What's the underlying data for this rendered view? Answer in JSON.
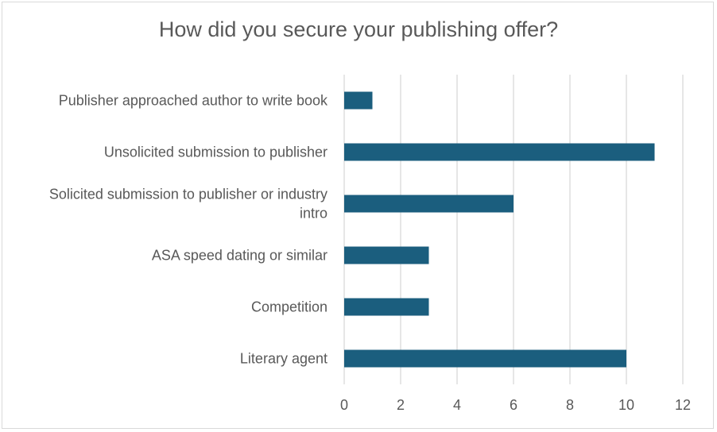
{
  "chart_data": {
    "type": "bar",
    "orientation": "horizontal",
    "title": "How did you secure your publishing offer?",
    "categories": [
      "Publisher approached author to write book",
      "Unsolicited submission to publisher",
      "Solicited submission to publisher or industry intro",
      "ASA speed dating or similar",
      "Competition",
      "Literary agent"
    ],
    "category_lines": [
      [
        "Publisher approached author to write book"
      ],
      [
        "Unsolicited submission to publisher"
      ],
      [
        "Solicited submission to publisher or industry",
        "intro"
      ],
      [
        "ASA speed dating or similar"
      ],
      [
        "Competition"
      ],
      [
        "Literary agent"
      ]
    ],
    "values": [
      1,
      11,
      6,
      3,
      3,
      10
    ],
    "xlim": [
      0,
      12
    ],
    "xticks": [
      0,
      2,
      4,
      6,
      8,
      10,
      12
    ],
    "xlabel": "",
    "ylabel": "",
    "grid": true,
    "legend": "none",
    "bar_color": "#1b5e7e",
    "grid_color": "#d9d9d9"
  }
}
